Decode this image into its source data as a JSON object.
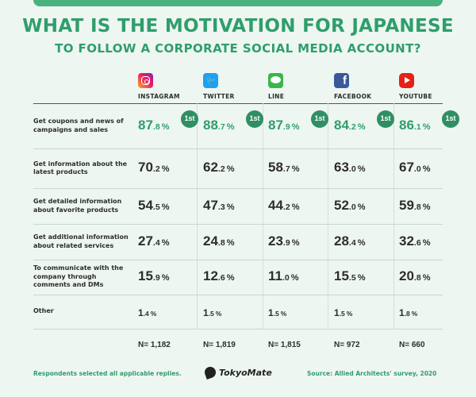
{
  "title_line1": "WHAT IS THE MOTIVATION FOR JAPANESE",
  "title_line2": "TO FOLLOW A CORPORATE SOCIAL MEDIA ACCOUNT?",
  "platforms": [
    {
      "name": "INSTAGRAM",
      "icon": "instagram-icon",
      "color": "#e91e63"
    },
    {
      "name": "TWITTER",
      "icon": "twitter-icon",
      "color": "#1da1f2"
    },
    {
      "name": "LINE",
      "icon": "line-icon",
      "color": "#3cb54a"
    },
    {
      "name": "FACEBOOK",
      "icon": "facebook-icon",
      "color": "#3b5998"
    },
    {
      "name": "YOUTUBE",
      "icon": "youtube-icon",
      "color": "#e62117"
    }
  ],
  "facebook_glyph": "f",
  "twitter_glyph": "🐦",
  "rank_badge": "1st",
  "percent_sign": "%",
  "chart_data": {
    "type": "table",
    "categories": [
      "INSTAGRAM",
      "TWITTER",
      "LINE",
      "FACEBOOK",
      "YOUTUBE"
    ],
    "rows": [
      {
        "label": "Get coupons and news of campaigns and sales",
        "values": [
          87.8,
          88.7,
          87.9,
          84.2,
          86.1
        ],
        "rank1": true
      },
      {
        "label": "Get information about the latest products",
        "values": [
          70.2,
          62.2,
          58.7,
          63.0,
          67.0
        ]
      },
      {
        "label": "Get detailed information about favorite products",
        "values": [
          54.5,
          47.3,
          44.2,
          52.0,
          59.8
        ]
      },
      {
        "label": "Get additional information about related services",
        "values": [
          27.4,
          24.8,
          23.9,
          28.4,
          32.6
        ]
      },
      {
        "label": "To communicate with the company through comments and DMs",
        "values": [
          15.9,
          12.6,
          11.0,
          15.5,
          20.8
        ]
      },
      {
        "label": "Other",
        "values": [
          1.4,
          1.5,
          1.5,
          1.5,
          1.8
        ]
      }
    ],
    "sample_sizes": [
      "N= 1,182",
      "N= 1,819",
      "N= 1,815",
      "N= 972",
      "N= 660"
    ],
    "highlight_color": "#2f9e6c"
  },
  "footer": {
    "note": "Respondents selected all applicable replies.",
    "brand": "TokyoMate",
    "source": "Source: Allied Architects' survey, 2020"
  }
}
